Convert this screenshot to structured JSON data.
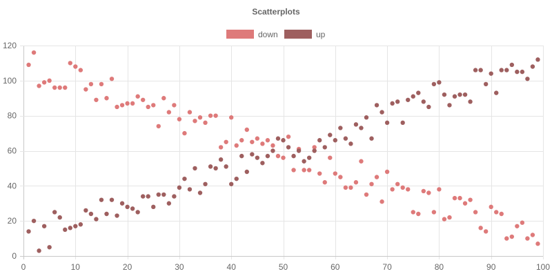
{
  "chart_data": {
    "type": "scatter",
    "title": "Scatterplots",
    "xlim": [
      0,
      100
    ],
    "ylim": [
      0,
      120
    ],
    "x_ticks": [
      0,
      10,
      20,
      30,
      40,
      50,
      60,
      70,
      80,
      90,
      100
    ],
    "y_ticks": [
      0,
      20,
      40,
      60,
      80,
      100,
      120
    ],
    "grid": true,
    "legend_position": "top-center",
    "series": [
      {
        "name": "down",
        "color": "#de7a7a",
        "points": [
          [
            1,
            109
          ],
          [
            2,
            116
          ],
          [
            3,
            97
          ],
          [
            4,
            99
          ],
          [
            5,
            100
          ],
          [
            6,
            96
          ],
          [
            7,
            96
          ],
          [
            8,
            96
          ],
          [
            9,
            110
          ],
          [
            10,
            108
          ],
          [
            11,
            106
          ],
          [
            12,
            95
          ],
          [
            13,
            98
          ],
          [
            14,
            89
          ],
          [
            15,
            98
          ],
          [
            16,
            90
          ],
          [
            17,
            101
          ],
          [
            18,
            85
          ],
          [
            19,
            86
          ],
          [
            20,
            87
          ],
          [
            21,
            87
          ],
          [
            22,
            91
          ],
          [
            23,
            89
          ],
          [
            24,
            85
          ],
          [
            25,
            86
          ],
          [
            26,
            74
          ],
          [
            27,
            90
          ],
          [
            28,
            82
          ],
          [
            29,
            86
          ],
          [
            30,
            78
          ],
          [
            31,
            70
          ],
          [
            32,
            82
          ],
          [
            33,
            77
          ],
          [
            34,
            79
          ],
          [
            35,
            76
          ],
          [
            36,
            80
          ],
          [
            37,
            80
          ],
          [
            38,
            62
          ],
          [
            39,
            65
          ],
          [
            40,
            79
          ],
          [
            41,
            63
          ],
          [
            42,
            66
          ],
          [
            43,
            72
          ],
          [
            44,
            65
          ],
          [
            45,
            67
          ],
          [
            46,
            64
          ],
          [
            47,
            66
          ],
          [
            48,
            63
          ],
          [
            49,
            57
          ],
          [
            50,
            56
          ],
          [
            51,
            68
          ],
          [
            52,
            49
          ],
          [
            53,
            61
          ],
          [
            54,
            49
          ],
          [
            55,
            49
          ],
          [
            56,
            62
          ],
          [
            57,
            47
          ],
          [
            58,
            42
          ],
          [
            59,
            56
          ],
          [
            60,
            47
          ],
          [
            61,
            45
          ],
          [
            62,
            39
          ],
          [
            63,
            39
          ],
          [
            64,
            42
          ],
          [
            65,
            54
          ],
          [
            66,
            35
          ],
          [
            67,
            41
          ],
          [
            68,
            45
          ],
          [
            69,
            31
          ],
          [
            70,
            48
          ],
          [
            71,
            38
          ],
          [
            72,
            41
          ],
          [
            73,
            39
          ],
          [
            74,
            38
          ],
          [
            75,
            25
          ],
          [
            76,
            24
          ],
          [
            77,
            37
          ],
          [
            78,
            36
          ],
          [
            79,
            25
          ],
          [
            80,
            38
          ],
          [
            81,
            21
          ],
          [
            82,
            22
          ],
          [
            83,
            33
          ],
          [
            84,
            33
          ],
          [
            85,
            30
          ],
          [
            86,
            32
          ],
          [
            87,
            25
          ],
          [
            88,
            16
          ],
          [
            89,
            14
          ],
          [
            90,
            28
          ],
          [
            91,
            25
          ],
          [
            92,
            24
          ],
          [
            93,
            10
          ],
          [
            94,
            11
          ],
          [
            95,
            17
          ],
          [
            96,
            19
          ],
          [
            97,
            10
          ],
          [
            98,
            12
          ],
          [
            99,
            7
          ]
        ]
      },
      {
        "name": "up",
        "color": "#9e5f5f",
        "points": [
          [
            1,
            14
          ],
          [
            2,
            20
          ],
          [
            3,
            3
          ],
          [
            4,
            17
          ],
          [
            5,
            5
          ],
          [
            6,
            25
          ],
          [
            7,
            22
          ],
          [
            8,
            15
          ],
          [
            9,
            16
          ],
          [
            10,
            17
          ],
          [
            11,
            18
          ],
          [
            12,
            26
          ],
          [
            13,
            24
          ],
          [
            14,
            21
          ],
          [
            15,
            32
          ],
          [
            16,
            24
          ],
          [
            17,
            32
          ],
          [
            18,
            23
          ],
          [
            19,
            30
          ],
          [
            20,
            28
          ],
          [
            21,
            27
          ],
          [
            22,
            25
          ],
          [
            23,
            34
          ],
          [
            24,
            34
          ],
          [
            25,
            28
          ],
          [
            26,
            35
          ],
          [
            27,
            35
          ],
          [
            28,
            30
          ],
          [
            29,
            34
          ],
          [
            30,
            39
          ],
          [
            31,
            44
          ],
          [
            32,
            38
          ],
          [
            33,
            50
          ],
          [
            34,
            36
          ],
          [
            35,
            41
          ],
          [
            36,
            51
          ],
          [
            37,
            50
          ],
          [
            38,
            55
          ],
          [
            39,
            51
          ],
          [
            40,
            41
          ],
          [
            41,
            44
          ],
          [
            42,
            57
          ],
          [
            43,
            48
          ],
          [
            44,
            58
          ],
          [
            45,
            56
          ],
          [
            46,
            53
          ],
          [
            47,
            57
          ],
          [
            48,
            60
          ],
          [
            49,
            67
          ],
          [
            50,
            66
          ],
          [
            51,
            62
          ],
          [
            52,
            57
          ],
          [
            53,
            60
          ],
          [
            54,
            54
          ],
          [
            55,
            56
          ],
          [
            56,
            60
          ],
          [
            57,
            66
          ],
          [
            58,
            62
          ],
          [
            59,
            69
          ],
          [
            60,
            66
          ],
          [
            61,
            73
          ],
          [
            62,
            67
          ],
          [
            63,
            64
          ],
          [
            64,
            75
          ],
          [
            65,
            73
          ],
          [
            66,
            79
          ],
          [
            67,
            67
          ],
          [
            68,
            86
          ],
          [
            69,
            82
          ],
          [
            70,
            76
          ],
          [
            71,
            87
          ],
          [
            72,
            88
          ],
          [
            73,
            76
          ],
          [
            74,
            89
          ],
          [
            75,
            91
          ],
          [
            76,
            93
          ],
          [
            77,
            88
          ],
          [
            78,
            85
          ],
          [
            79,
            98
          ],
          [
            80,
            99
          ],
          [
            81,
            92
          ],
          [
            82,
            86
          ],
          [
            83,
            91
          ],
          [
            84,
            92
          ],
          [
            85,
            92
          ],
          [
            86,
            88
          ],
          [
            87,
            106
          ],
          [
            88,
            106
          ],
          [
            89,
            98
          ],
          [
            90,
            104
          ],
          [
            91,
            93
          ],
          [
            92,
            106
          ],
          [
            93,
            106
          ],
          [
            94,
            109
          ],
          [
            95,
            105
          ],
          [
            96,
            105
          ],
          [
            97,
            101
          ],
          [
            98,
            108
          ],
          [
            99,
            112
          ]
        ]
      }
    ]
  }
}
